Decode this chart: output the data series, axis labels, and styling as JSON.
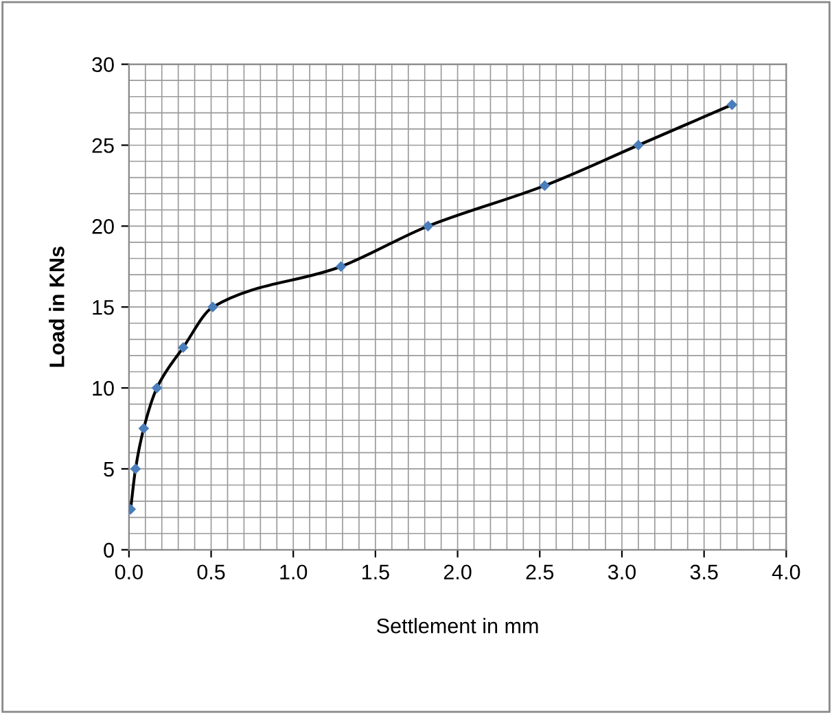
{
  "chart_data": {
    "type": "line",
    "xlabel": "Settlement in mm",
    "ylabel": "Load in KNs",
    "x": [
      0.01,
      0.04,
      0.09,
      0.17,
      0.33,
      0.51,
      1.29,
      1.82,
      2.53,
      3.1,
      3.67
    ],
    "series": [
      {
        "color": "#4a7ebb",
        "values": [
          2.5,
          5,
          7.5,
          10,
          12.5,
          15,
          17.5,
          20,
          22.5,
          25,
          27.5
        ]
      }
    ],
    "xlim": [
      0,
      4
    ],
    "xticks": [
      {
        "value": 0,
        "label": "0.0"
      },
      {
        "value": 0.5,
        "label": "0.5"
      },
      {
        "value": 1,
        "label": "1.0"
      },
      {
        "value": 1.5,
        "label": "1.5"
      },
      {
        "value": 2,
        "label": "2.0"
      },
      {
        "value": 2.5,
        "label": "2.5"
      },
      {
        "value": 3,
        "label": "3.0"
      },
      {
        "value": 3.5,
        "label": "3.5"
      },
      {
        "value": 4,
        "label": "4.0"
      }
    ],
    "ylim": [
      0,
      30
    ],
    "yticks": [
      0,
      5,
      10,
      15,
      20,
      25,
      30
    ],
    "grid": true,
    "marker": "diamond",
    "line_style": "solid",
    "legend": false
  }
}
